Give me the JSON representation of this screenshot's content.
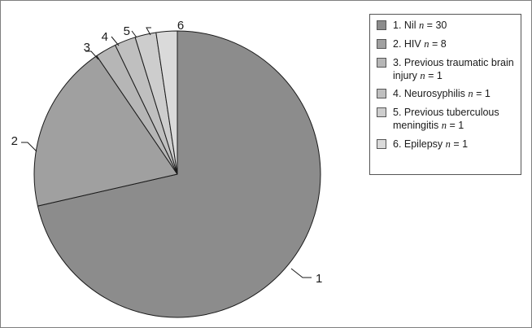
{
  "chart_data": {
    "type": "pie",
    "title": "",
    "start_angle_deg": 0,
    "direction": "clockwise",
    "slices": [
      {
        "label": "1",
        "name": "Nil",
        "n": 30,
        "value": 30,
        "color": "#8c8c8c"
      },
      {
        "label": "2",
        "name": "HIV",
        "n": 8,
        "value": 8,
        "color": "#a0a0a0"
      },
      {
        "label": "3",
        "name": "Previous traumatic brain injury",
        "n": 1,
        "value": 1,
        "color": "#b6b6b6"
      },
      {
        "label": "4",
        "name": "Neurosyphilis",
        "n": 1,
        "value": 1,
        "color": "#bfbfbf"
      },
      {
        "label": "5",
        "name": "Previous tuberculous meningitis",
        "n": 1,
        "value": 1,
        "color": "#cdcdcd"
      },
      {
        "label": "6",
        "name": "Epilepsy",
        "n": 1,
        "value": 1,
        "color": "#dadada"
      }
    ],
    "legend": {
      "position": "top-right",
      "entries": [
        {
          "prefix": "1. Nil ",
          "n_symbol": "n",
          "suffix": " = 30"
        },
        {
          "prefix": "2. HIV ",
          "n_symbol": "n",
          "suffix": " = 8"
        },
        {
          "prefix": "3. Previous traumatic brain injury ",
          "n_symbol": "n",
          "suffix": " = 1"
        },
        {
          "prefix": "4. Neurosyphilis ",
          "n_symbol": "n",
          "suffix": " = 1"
        },
        {
          "prefix": "5. Previous tuberculous meningitis ",
          "n_symbol": "n",
          "suffix": " = 1"
        },
        {
          "prefix": "6. Epilepsy ",
          "n_symbol": "n",
          "suffix": " = 1"
        }
      ]
    }
  }
}
